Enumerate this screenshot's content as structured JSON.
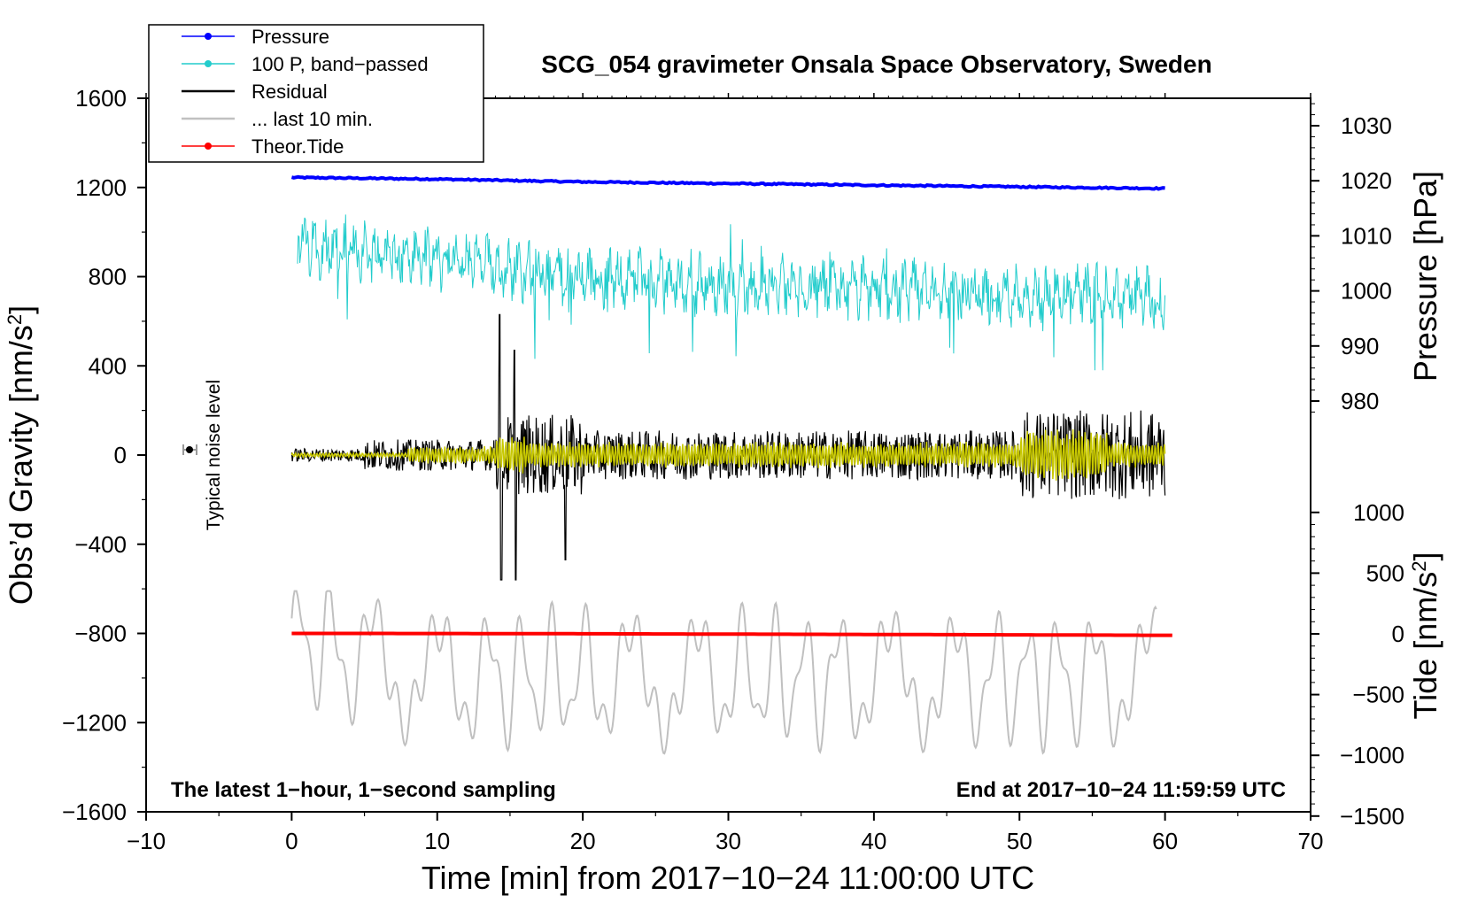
{
  "chart_data": {
    "type": "line",
    "title": "SCG_054 gravimeter Onsala Space Observatory, Sweden",
    "xlabel": "Time [min] from 2017−10−24 11:00:00 UTC",
    "ylabel_left": "Obs’d Gravity [nm/s",
    "ylabel_left_sup": "2",
    "ylabel_left_close": "]",
    "ylabel_right_pressure": "Pressure [hPa]",
    "ylabel_right_tide": "Tide [nm/s",
    "ylabel_right_tide_sup": "2",
    "ylabel_right_tide_close": "]",
    "xlim": [
      -10,
      70
    ],
    "ylim_left": [
      -1600,
      1600
    ],
    "x_ticks": [
      -10,
      0,
      10,
      20,
      30,
      40,
      50,
      60,
      70
    ],
    "x_tick_labels": [
      "−10",
      "0",
      "10",
      "20",
      "30",
      "40",
      "50",
      "60",
      "70"
    ],
    "y_ticks": [
      1600,
      1200,
      800,
      400,
      0,
      -400,
      -800,
      -1200,
      -1600
    ],
    "y_tick_labels": [
      "1600",
      "1200",
      "800",
      "400",
      "0",
      "−400",
      "−800",
      "−1200",
      "−1600"
    ],
    "pressure_ticks": [
      1030,
      1020,
      1010,
      1000,
      990,
      980
    ],
    "pressure_tick_labels": [
      "1030",
      "1020",
      "1010",
      "1000",
      "990",
      "980"
    ],
    "tide_ticks": [
      1000,
      500,
      0,
      -500,
      -1000,
      -1500
    ],
    "tide_tick_labels": [
      "1000",
      "500",
      "0",
      "−500",
      "−1000",
      "−1500"
    ],
    "note_left": "The latest 1−hour, 1−second sampling",
    "note_right": "End at 2017−10−24 11:59:59 UTC",
    "noise_label": "Typical noise level",
    "noise_point": {
      "x": -7,
      "y": 0
    },
    "legend": [
      {
        "label": "Pressure",
        "color": "#0000ff",
        "marker": true
      },
      {
        "label": "100 P, band−passed",
        "color": "#22cccc",
        "marker": true
      },
      {
        "label": "Residual",
        "color": "#000000",
        "marker": false
      },
      {
        "label": "... last 10 min.",
        "color": "#c0c0c0",
        "marker": false
      },
      {
        "label": "Theor.Tide",
        "color": "#ff0000",
        "marker": true
      }
    ],
    "series": [
      {
        "name": "Pressure",
        "color": "#0000ff",
        "unit": "hPa",
        "x": [
          0,
          10,
          20,
          30,
          40,
          50,
          60
        ],
        "values": [
          1020.6,
          1020.3,
          1019.8,
          1019.5,
          1019.2,
          1018.9,
          1018.6
        ]
      },
      {
        "name": "100 P, band−passed",
        "color": "#22cccc",
        "unit": "nm/s2",
        "x": [
          0,
          10,
          20,
          30,
          40,
          50,
          60
        ],
        "values": [
          950,
          880,
          800,
          760,
          740,
          720,
          700
        ],
        "min": 380,
        "max": 1140
      },
      {
        "name": "Residual",
        "color": "#000000",
        "unit": "nm/s2",
        "x": [
          0,
          10,
          20,
          30,
          40,
          50,
          60
        ],
        "values": [
          0,
          0,
          0,
          0,
          0,
          0,
          0
        ],
        "min": -560,
        "max": 630
      },
      {
        "name": "Residual (filtered)",
        "color": "#c8c800",
        "unit": "nm/s2",
        "x": [
          0,
          10,
          20,
          30,
          40,
          50,
          60
        ],
        "values": [
          0,
          0,
          0,
          0,
          0,
          0,
          0
        ],
        "min": -200,
        "max": 200
      },
      {
        "name": "... last 10 min.",
        "color": "#c0c0c0",
        "unit": "nm/s2",
        "x": [
          0,
          10,
          20,
          30,
          40,
          50,
          60
        ],
        "values": [
          -830,
          -1000,
          -1000,
          -1000,
          -1000,
          -1000,
          -1000
        ],
        "min": -1370,
        "max": -610
      },
      {
        "name": "Theor.Tide",
        "color": "#ff0000",
        "unit": "nm/s2",
        "x": [
          0,
          10,
          20,
          30,
          40,
          50,
          60
        ],
        "values": [
          4,
          3,
          1,
          -2,
          -5,
          -8,
          -12
        ]
      }
    ]
  }
}
